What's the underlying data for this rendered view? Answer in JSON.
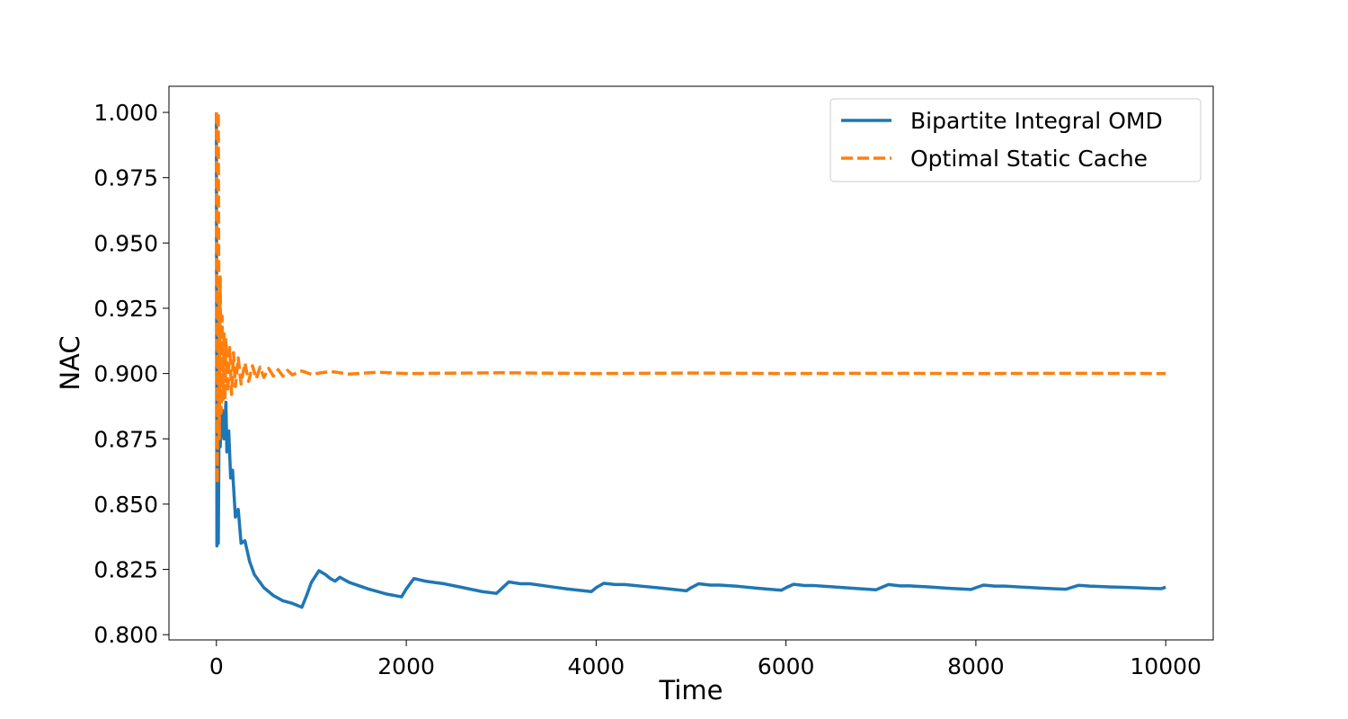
{
  "chart_data": {
    "type": "line",
    "title": "",
    "xlabel": "Time",
    "ylabel": "NAC",
    "xlim": [
      -500,
      10500
    ],
    "ylim": [
      0.798,
      1.01
    ],
    "xticks": [
      0,
      2000,
      4000,
      6000,
      8000,
      10000
    ],
    "xtick_labels": [
      "0",
      "2000",
      "4000",
      "6000",
      "8000",
      "10000"
    ],
    "yticks": [
      0.8,
      0.825,
      0.85,
      0.875,
      0.9,
      0.925,
      0.95,
      0.975,
      1.0
    ],
    "ytick_labels": [
      "0.800",
      "0.825",
      "0.850",
      "0.875",
      "0.900",
      "0.925",
      "0.950",
      "0.975",
      "1.000"
    ],
    "grid": false,
    "legend_position": "top-right",
    "series": [
      {
        "name": "Bipartite Integral OMD",
        "color": "#1f77b4",
        "style": "solid",
        "points": [
          [
            0,
            1.0
          ],
          [
            5,
            0.834
          ],
          [
            10,
            0.86
          ],
          [
            20,
            0.835
          ],
          [
            30,
            0.893
          ],
          [
            40,
            0.872
          ],
          [
            60,
            0.886
          ],
          [
            80,
            0.875
          ],
          [
            100,
            0.889
          ],
          [
            110,
            0.87
          ],
          [
            130,
            0.878
          ],
          [
            150,
            0.86
          ],
          [
            170,
            0.863
          ],
          [
            200,
            0.845
          ],
          [
            230,
            0.848
          ],
          [
            260,
            0.835
          ],
          [
            300,
            0.836
          ],
          [
            350,
            0.828
          ],
          [
            400,
            0.823
          ],
          [
            500,
            0.818
          ],
          [
            600,
            0.815
          ],
          [
            700,
            0.813
          ],
          [
            800,
            0.812
          ],
          [
            900,
            0.8105
          ],
          [
            950,
            0.815
          ],
          [
            1000,
            0.82
          ],
          [
            1080,
            0.8245
          ],
          [
            1150,
            0.823
          ],
          [
            1200,
            0.8215
          ],
          [
            1250,
            0.8205
          ],
          [
            1300,
            0.822
          ],
          [
            1400,
            0.82
          ],
          [
            1600,
            0.8175
          ],
          [
            1800,
            0.8155
          ],
          [
            1950,
            0.8145
          ],
          [
            2000,
            0.8175
          ],
          [
            2080,
            0.8215
          ],
          [
            2200,
            0.8205
          ],
          [
            2300,
            0.82
          ],
          [
            2400,
            0.8195
          ],
          [
            2600,
            0.818
          ],
          [
            2800,
            0.8165
          ],
          [
            2950,
            0.8158
          ],
          [
            3000,
            0.8175
          ],
          [
            3080,
            0.8202
          ],
          [
            3200,
            0.8195
          ],
          [
            3300,
            0.8195
          ],
          [
            3500,
            0.8185
          ],
          [
            3700,
            0.8175
          ],
          [
            3950,
            0.8165
          ],
          [
            4000,
            0.818
          ],
          [
            4080,
            0.8197
          ],
          [
            4200,
            0.8192
          ],
          [
            4300,
            0.8192
          ],
          [
            4500,
            0.8185
          ],
          [
            4700,
            0.8178
          ],
          [
            4950,
            0.8168
          ],
          [
            5000,
            0.818
          ],
          [
            5080,
            0.8195
          ],
          [
            5200,
            0.819
          ],
          [
            5300,
            0.819
          ],
          [
            5500,
            0.8185
          ],
          [
            5700,
            0.8178
          ],
          [
            5950,
            0.817
          ],
          [
            6000,
            0.818
          ],
          [
            6080,
            0.8193
          ],
          [
            6200,
            0.8188
          ],
          [
            6300,
            0.8188
          ],
          [
            6500,
            0.8183
          ],
          [
            6700,
            0.8178
          ],
          [
            6950,
            0.8172
          ],
          [
            7000,
            0.818
          ],
          [
            7080,
            0.8192
          ],
          [
            7200,
            0.8187
          ],
          [
            7300,
            0.8187
          ],
          [
            7500,
            0.8183
          ],
          [
            7700,
            0.8178
          ],
          [
            7950,
            0.8173
          ],
          [
            8000,
            0.818
          ],
          [
            8080,
            0.819
          ],
          [
            8200,
            0.8186
          ],
          [
            8300,
            0.8186
          ],
          [
            8500,
            0.8182
          ],
          [
            8700,
            0.8178
          ],
          [
            8950,
            0.8174
          ],
          [
            9000,
            0.818
          ],
          [
            9080,
            0.8189
          ],
          [
            9200,
            0.8186
          ],
          [
            9400,
            0.8183
          ],
          [
            9600,
            0.8181
          ],
          [
            9800,
            0.8178
          ],
          [
            9950,
            0.8176
          ],
          [
            10000,
            0.8182
          ]
        ]
      },
      {
        "name": "Optimal Static Cache",
        "color": "#ff7f0e",
        "style": "dashed",
        "points": [
          [
            0,
            1.0
          ],
          [
            10,
            0.858
          ],
          [
            20,
            1.0
          ],
          [
            30,
            0.875
          ],
          [
            40,
            0.937
          ],
          [
            50,
            0.885
          ],
          [
            60,
            0.922
          ],
          [
            70,
            0.89
          ],
          [
            80,
            0.916
          ],
          [
            90,
            0.89
          ],
          [
            100,
            0.913
          ],
          [
            120,
            0.893
          ],
          [
            140,
            0.91
          ],
          [
            160,
            0.892
          ],
          [
            180,
            0.908
          ],
          [
            200,
            0.895
          ],
          [
            230,
            0.906
          ],
          [
            260,
            0.896
          ],
          [
            300,
            0.904
          ],
          [
            340,
            0.897
          ],
          [
            380,
            0.903
          ],
          [
            420,
            0.898
          ],
          [
            460,
            0.9025
          ],
          [
            500,
            0.8985
          ],
          [
            550,
            0.902
          ],
          [
            600,
            0.899
          ],
          [
            650,
            0.9015
          ],
          [
            700,
            0.899
          ],
          [
            750,
            0.9012
          ],
          [
            800,
            0.8995
          ],
          [
            900,
            0.901
          ],
          [
            1000,
            0.8997
          ],
          [
            1200,
            0.9008
          ],
          [
            1400,
            0.8998
          ],
          [
            1700,
            0.9005
          ],
          [
            2000,
            0.9
          ],
          [
            3000,
            0.9003
          ],
          [
            4000,
            0.9
          ],
          [
            5000,
            0.9002
          ],
          [
            6000,
            0.9
          ],
          [
            7000,
            0.9001
          ],
          [
            8000,
            0.9
          ],
          [
            9000,
            0.9001
          ],
          [
            10000,
            0.9
          ]
        ]
      }
    ]
  }
}
